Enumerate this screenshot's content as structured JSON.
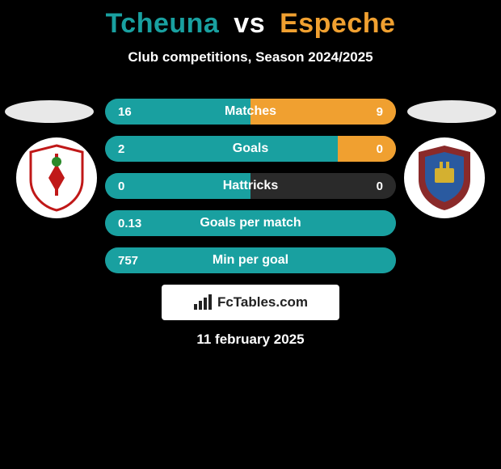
{
  "header": {
    "player1": "Tcheuna",
    "vs": "vs",
    "player2": "Espeche",
    "player1_color": "#19a0a0",
    "vs_color": "#ffffff",
    "player2_color": "#f0a030",
    "subtitle": "Club competitions, Season 2024/2025"
  },
  "ovals": {
    "left_color": "#e8e8e8",
    "right_color": "#e8e8e8"
  },
  "badges": {
    "left": {
      "name": "carpi-fc-badge",
      "shield_fill": "#ffffff",
      "shield_stroke": "#c01818",
      "stripe_fill": "#c01818"
    },
    "right": {
      "name": "pontedera-badge",
      "shield_fill": "#8a2a2a",
      "inner_fill": "#2a5aa0",
      "accent": "#d4b030"
    }
  },
  "stats": {
    "track_color": "#2a2a2a",
    "left_fill_color": "#19a0a0",
    "right_fill_color": "#f0a030",
    "rows": [
      {
        "label": "Matches",
        "left": "16",
        "right": "9",
        "left_pct": 50,
        "right_pct": 50
      },
      {
        "label": "Goals",
        "left": "2",
        "right": "0",
        "left_pct": 80,
        "right_pct": 20
      },
      {
        "label": "Hattricks",
        "left": "0",
        "right": "0",
        "left_pct": 50,
        "right_pct": 0
      },
      {
        "label": "Goals per match",
        "left": "0.13",
        "right": "",
        "left_pct": 100,
        "right_pct": 0
      },
      {
        "label": "Min per goal",
        "left": "757",
        "right": "",
        "left_pct": 100,
        "right_pct": 0
      }
    ]
  },
  "footer": {
    "logo_text": "FcTables.com",
    "date": "11 february 2025"
  }
}
